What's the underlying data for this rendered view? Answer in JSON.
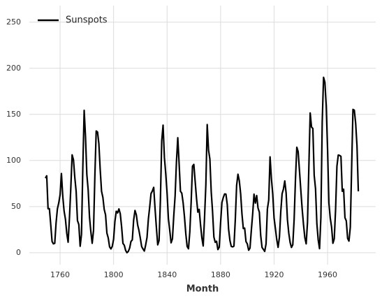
{
  "chart_data": {
    "type": "line",
    "xlabel": "Month",
    "x": [
      1749,
      1750,
      1751,
      1752,
      1753,
      1754,
      1755,
      1756,
      1757,
      1758,
      1759,
      1760,
      1761,
      1762,
      1763,
      1764,
      1765,
      1766,
      1767,
      1768,
      1769,
      1770,
      1771,
      1772,
      1773,
      1774,
      1775,
      1776,
      1777,
      1778,
      1779,
      1780,
      1781,
      1782,
      1783,
      1784,
      1785,
      1786,
      1787,
      1788,
      1789,
      1790,
      1791,
      1792,
      1793,
      1794,
      1795,
      1796,
      1797,
      1798,
      1799,
      1800,
      1801,
      1802,
      1803,
      1804,
      1805,
      1806,
      1807,
      1808,
      1809,
      1810,
      1811,
      1812,
      1813,
      1814,
      1815,
      1816,
      1817,
      1818,
      1819,
      1820,
      1821,
      1822,
      1823,
      1824,
      1825,
      1826,
      1827,
      1828,
      1829,
      1830,
      1831,
      1832,
      1833,
      1834,
      1835,
      1836,
      1837,
      1838,
      1839,
      1840,
      1841,
      1842,
      1843,
      1844,
      1845,
      1846,
      1847,
      1848,
      1849,
      1850,
      1851,
      1852,
      1853,
      1854,
      1855,
      1856,
      1857,
      1858,
      1859,
      1860,
      1861,
      1862,
      1863,
      1864,
      1865,
      1866,
      1867,
      1868,
      1869,
      1870,
      1871,
      1872,
      1873,
      1874,
      1875,
      1876,
      1877,
      1878,
      1879,
      1880,
      1881,
      1882,
      1883,
      1884,
      1885,
      1886,
      1887,
      1888,
      1889,
      1890,
      1891,
      1892,
      1893,
      1894,
      1895,
      1896,
      1897,
      1898,
      1899,
      1900,
      1901,
      1902,
      1903,
      1904,
      1905,
      1906,
      1907,
      1908,
      1909,
      1910,
      1911,
      1912,
      1913,
      1914,
      1915,
      1916,
      1917,
      1918,
      1919,
      1920,
      1921,
      1922,
      1923,
      1924,
      1925,
      1926,
      1927,
      1928,
      1929,
      1930,
      1931,
      1932,
      1933,
      1934,
      1935,
      1936,
      1937,
      1938,
      1939,
      1940,
      1941,
      1942,
      1943,
      1944,
      1945,
      1946,
      1947,
      1948,
      1949,
      1950,
      1951,
      1952,
      1953,
      1954,
      1955,
      1956,
      1957,
      1958,
      1959,
      1960,
      1961,
      1962,
      1963,
      1964,
      1965,
      1966,
      1967,
      1968,
      1969,
      1970,
      1971,
      1972,
      1973,
      1974,
      1975,
      1976,
      1977,
      1978,
      1979,
      1980,
      1981,
      1982,
      1983
    ],
    "series": [
      {
        "name": "Sunspots",
        "color": "#000000",
        "values": [
          80.9,
          83.4,
          47.7,
          47.8,
          30.7,
          12.2,
          9.6,
          10.2,
          32.4,
          47.6,
          54.0,
          62.9,
          85.9,
          61.2,
          45.1,
          36.4,
          20.9,
          11.4,
          37.8,
          69.8,
          106.1,
          100.8,
          81.6,
          66.5,
          34.8,
          30.6,
          7.0,
          19.8,
          92.5,
          154.4,
          125.9,
          84.8,
          68.1,
          38.5,
          22.8,
          10.2,
          24.1,
          82.9,
          132.0,
          130.9,
          118.1,
          89.9,
          66.6,
          60.0,
          46.9,
          41.0,
          21.3,
          16.0,
          6.4,
          4.1,
          6.8,
          14.5,
          34.0,
          45.0,
          43.1,
          47.5,
          42.2,
          28.1,
          10.1,
          8.1,
          2.5,
          0.0,
          1.4,
          5.0,
          12.2,
          13.9,
          35.4,
          45.8,
          41.1,
          30.1,
          23.9,
          15.6,
          6.6,
          4.0,
          1.8,
          8.5,
          16.6,
          36.3,
          49.6,
          64.2,
          67.0,
          70.9,
          47.8,
          27.5,
          8.5,
          13.2,
          56.9,
          121.5,
          138.3,
          103.2,
          85.7,
          64.6,
          36.7,
          24.2,
          10.7,
          15.0,
          40.1,
          61.5,
          98.5,
          124.7,
          96.3,
          66.6,
          64.5,
          54.1,
          39.0,
          20.6,
          6.7,
          4.3,
          22.7,
          54.8,
          93.8,
          95.8,
          77.2,
          59.1,
          44.0,
          47.0,
          30.5,
          16.3,
          7.3,
          37.6,
          74.0,
          139.0,
          111.2,
          101.6,
          66.2,
          44.7,
          17.0,
          11.3,
          12.4,
          3.4,
          6.0,
          32.3,
          54.3,
          59.7,
          63.7,
          63.5,
          52.2,
          25.4,
          13.1,
          6.8,
          6.3,
          7.1,
          35.6,
          73.0,
          85.1,
          78.0,
          64.0,
          41.8,
          26.2,
          26.7,
          12.1,
          9.5,
          2.7,
          5.0,
          24.4,
          42.0,
          63.5,
          53.8,
          62.0,
          48.5,
          43.9,
          18.6,
          5.7,
          3.6,
          1.4,
          9.6,
          47.4,
          57.1,
          103.9,
          80.6,
          63.6,
          37.6,
          26.1,
          14.2,
          5.8,
          16.7,
          44.3,
          63.9,
          69.0,
          77.8,
          64.9,
          35.7,
          21.2,
          11.1,
          5.7,
          8.7,
          36.1,
          79.7,
          114.4,
          109.6,
          88.8,
          67.8,
          47.5,
          30.6,
          16.3,
          9.6,
          33.2,
          92.6,
          151.6,
          136.3,
          134.7,
          83.9,
          69.4,
          31.5,
          13.9,
          4.4,
          38.0,
          141.7,
          190.2,
          184.8,
          159.0,
          112.3,
          53.9,
          37.6,
          27.9,
          10.2,
          15.1,
          47.0,
          93.8,
          105.9,
          105.5,
          104.5,
          66.6,
          68.9,
          38.0,
          34.5,
          15.5,
          12.6,
          27.5,
          92.5,
          155.4,
          154.6,
          140.4,
          115.9,
          66.6
        ]
      }
    ],
    "xlim": [
      1737,
      1996
    ],
    "xticks": [
      1760,
      1800,
      1840,
      1880,
      1920,
      1960
    ],
    "ylim": [
      -13,
      268
    ],
    "yticks": [
      0,
      50,
      100,
      150,
      200,
      250
    ],
    "grid": true,
    "legend": "upper left"
  }
}
